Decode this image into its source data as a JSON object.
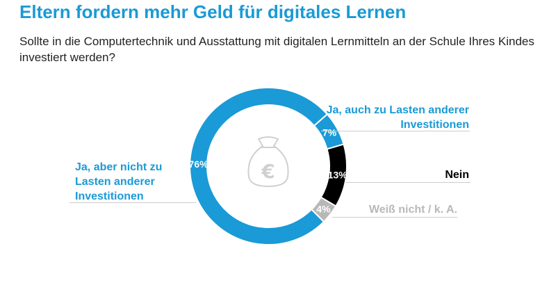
{
  "chart_data": {
    "type": "pie",
    "variant": "donut",
    "title": "Eltern fordern mehr Geld für digitales Lernen",
    "subtitle": "Sollte in die Computertechnik und Ausstattung mit digitalen Lernmitteln an der Schule Ihres Kindes investiert werden?",
    "center_icon": "money-bag-euro-icon",
    "slices": [
      {
        "name": "Ja, auch zu Lasten anderer Investitionen",
        "value": 7,
        "label": "7%",
        "color": "#1a9ad6",
        "label_color": "#1a9ad6"
      },
      {
        "name": "Nein",
        "value": 13,
        "label": "13%",
        "color": "#000000",
        "label_color": "#000000"
      },
      {
        "name": "Weiß nicht / k. A.",
        "value": 4,
        "label": "4%",
        "color": "#b8b8b8",
        "label_color": "#b8b8b8"
      },
      {
        "name": "Ja, aber nicht zu Lasten anderer Investitionen",
        "value": 76,
        "label": "76%",
        "color": "#1a9ad6",
        "label_color": "#1a9ad6"
      }
    ]
  }
}
